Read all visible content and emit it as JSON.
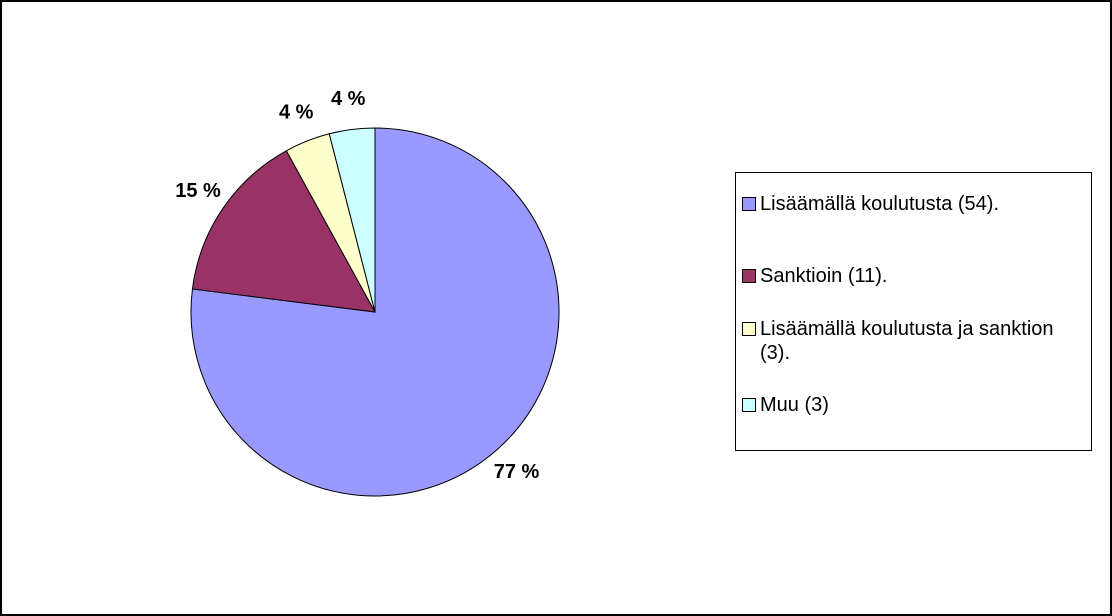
{
  "chart_data": {
    "type": "pie",
    "categories": [
      "Lisäämällä koulutusta (54).",
      "Sanktioin (11).",
      "Lisäämällä koulutusta ja sanktion (3).",
      "Muu (3)"
    ],
    "values": [
      77,
      15,
      4,
      4
    ],
    "value_labels": [
      "77 %",
      "15 %",
      "4 %",
      "4 %"
    ],
    "colors": [
      "#9999ff",
      "#993366",
      "#ffffcc",
      "#ccffff"
    ],
    "legend": "right"
  }
}
